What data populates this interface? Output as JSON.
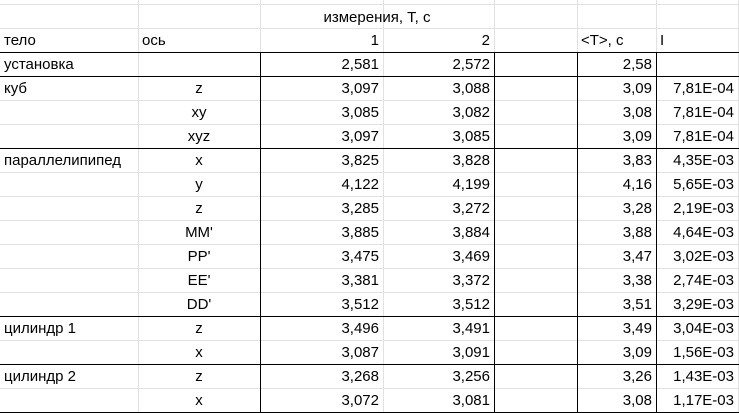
{
  "header": {
    "group_title": "измерения, Т, с",
    "col_body": "тело",
    "col_axis": "ось",
    "col_m1": "1",
    "col_m2": "2",
    "col_avg": "<T>, с",
    "col_i": "I"
  },
  "rows": [
    {
      "body": "установка",
      "axis": "",
      "m1": "2,581",
      "m2": "2,572",
      "avg": "2,58",
      "i": ""
    },
    {
      "body": "куб",
      "axis": "z",
      "m1": "3,097",
      "m2": "3,088",
      "avg": "3,09",
      "i": "7,81E-04"
    },
    {
      "body": "",
      "axis": "xy",
      "m1": "3,085",
      "m2": "3,082",
      "avg": "3,08",
      "i": "7,81E-04"
    },
    {
      "body": "",
      "axis": "xyz",
      "m1": "3,097",
      "m2": "3,085",
      "avg": "3,09",
      "i": "7,81E-04"
    },
    {
      "body": "параллелипипед",
      "axis": "x",
      "m1": "3,825",
      "m2": "3,828",
      "avg": "3,83",
      "i": "4,35E-03"
    },
    {
      "body": "",
      "axis": "y",
      "m1": "4,122",
      "m2": "4,199",
      "avg": "4,16",
      "i": "5,65E-03"
    },
    {
      "body": "",
      "axis": "z",
      "m1": "3,285",
      "m2": "3,272",
      "avg": "3,28",
      "i": "2,19E-03"
    },
    {
      "body": "",
      "axis": "MM'",
      "m1": "3,885",
      "m2": "3,884",
      "avg": "3,88",
      "i": "4,64E-03"
    },
    {
      "body": "",
      "axis": "PP'",
      "m1": "3,475",
      "m2": "3,469",
      "avg": "3,47",
      "i": "3,02E-03"
    },
    {
      "body": "",
      "axis": "EE'",
      "m1": "3,381",
      "m2": "3,372",
      "avg": "3,38",
      "i": "2,74E-03"
    },
    {
      "body": "",
      "axis": "DD'",
      "m1": "3,512",
      "m2": "3,512",
      "avg": "3,51",
      "i": "3,29E-03"
    },
    {
      "body": "цилиндр 1",
      "axis": "z",
      "m1": "3,496",
      "m2": "3,491",
      "avg": "3,49",
      "i": "3,04E-03"
    },
    {
      "body": "",
      "axis": "x",
      "m1": "3,087",
      "m2": "3,091",
      "avg": "3,09",
      "i": "1,56E-03"
    },
    {
      "body": "цилиндр 2",
      "axis": "z",
      "m1": "3,268",
      "m2": "3,256",
      "avg": "3,26",
      "i": "1,43E-03"
    },
    {
      "body": "",
      "axis": "x",
      "m1": "3,072",
      "m2": "3,081",
      "avg": "3,08",
      "i": "1,17E-03"
    }
  ]
}
